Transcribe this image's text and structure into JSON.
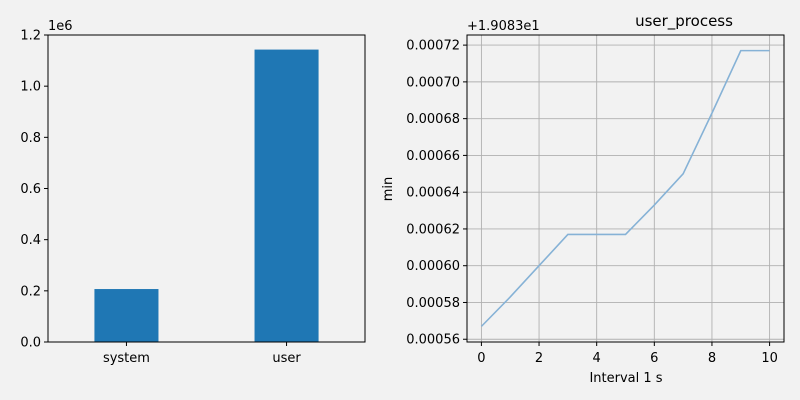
{
  "chart_data": [
    {
      "type": "bar",
      "categories": [
        "system",
        "user"
      ],
      "values": [
        207000,
        1143000
      ],
      "scale_label": "1e6",
      "ylim": [
        0,
        1200000
      ],
      "yticks": [
        0,
        200000,
        400000,
        600000,
        800000,
        1000000,
        1200000
      ],
      "ytick_labels": [
        "0.0",
        "0.2",
        "0.4",
        "0.6",
        "0.8",
        "1.0",
        "1.2"
      ],
      "grid": false,
      "color": "#1f77b4"
    },
    {
      "type": "line",
      "title": "user_process",
      "xlabel": "Interval 1 s",
      "ylabel": "min",
      "offset_label": "+1.9083e1",
      "x": [
        0,
        1,
        2,
        3,
        4,
        5,
        6,
        7,
        8,
        9,
        10
      ],
      "y": [
        0.000567,
        0.000583,
        0.0006,
        0.000617,
        0.000617,
        0.000617,
        0.000633,
        0.00065,
        0.000683,
        0.000717,
        0.000717
      ],
      "xlim": [
        -0.5,
        10.5
      ],
      "ylim": [
        0.0005585,
        0.0007255
      ],
      "xticks": [
        0,
        2,
        4,
        6,
        8,
        10
      ],
      "xtick_labels": [
        "0",
        "2",
        "4",
        "6",
        "8",
        "10"
      ],
      "yticks": [
        0.00056,
        0.00058,
        0.0006,
        0.00062,
        0.00064,
        0.00066,
        0.00068,
        0.0007,
        0.00072
      ],
      "ytick_labels": [
        "0.00056",
        "0.00058",
        "0.00060",
        "0.00062",
        "0.00064",
        "0.00066",
        "0.00068",
        "0.00070",
        "0.00072"
      ],
      "grid": true,
      "color": "#86b2d6"
    }
  ]
}
